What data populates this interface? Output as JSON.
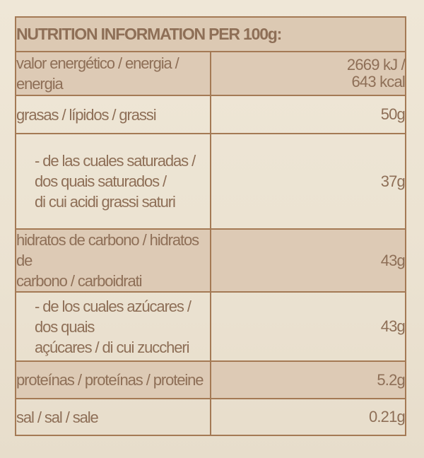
{
  "header": {
    "title": "NUTRITION INFORMATION PER 100g:"
  },
  "rows": [
    {
      "label_lines": [
        "valor energético / energia / energia"
      ],
      "value_lines": [
        "2669 kJ /",
        "643 kcal"
      ]
    },
    {
      "label_lines": [
        "grasas / lípidos / grassi"
      ],
      "value_lines": [
        "50g"
      ]
    },
    {
      "label_lines": [
        "- de las cuales saturadas /",
        "dos quais saturados /",
        "di cui acidi grassi saturi"
      ],
      "value_lines": [
        "37g"
      ]
    },
    {
      "label_lines": [
        "hidratos de carbono / hidratos de",
        "carbono / carboidrati"
      ],
      "value_lines": [
        "43g"
      ]
    },
    {
      "label_lines": [
        "- de los cuales azúcares / dos quais",
        "açúcares / di cui zuccheri"
      ],
      "value_lines": [
        "43g"
      ]
    },
    {
      "label_lines": [
        "proteínas / proteínas / proteine"
      ],
      "value_lines": [
        "5.2g"
      ]
    },
    {
      "label_lines": [
        "sal / sal / sale"
      ],
      "value_lines": [
        "0.21g"
      ]
    }
  ]
}
